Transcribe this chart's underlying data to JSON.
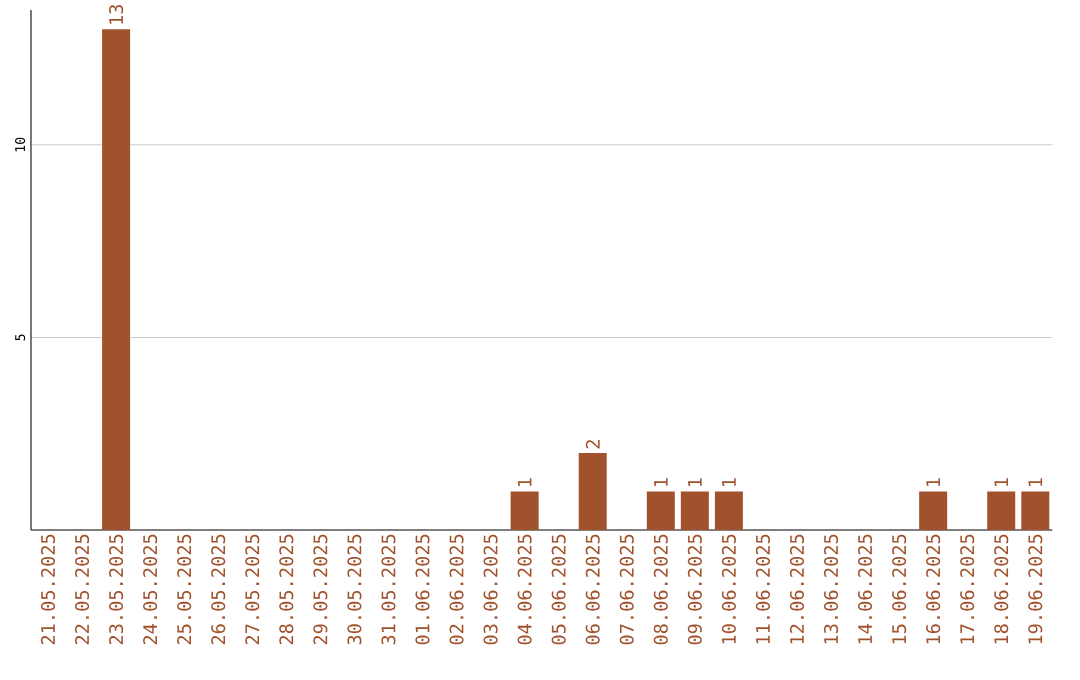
{
  "chart_data": {
    "type": "bar",
    "categories": [
      "21.05.2025",
      "22.05.2025",
      "23.05.2025",
      "24.05.2025",
      "25.05.2025",
      "26.05.2025",
      "27.05.2025",
      "28.05.2025",
      "29.05.2025",
      "30.05.2025",
      "31.05.2025",
      "01.06.2025",
      "02.06.2025",
      "03.06.2025",
      "04.06.2025",
      "05.06.2025",
      "06.06.2025",
      "07.06.2025",
      "08.06.2025",
      "09.06.2025",
      "10.06.2025",
      "11.06.2025",
      "12.06.2025",
      "13.06.2025",
      "14.06.2025",
      "15.06.2025",
      "16.06.2025",
      "17.06.2025",
      "18.06.2025",
      "19.06.2025"
    ],
    "values": [
      0,
      0,
      13,
      0,
      0,
      0,
      0,
      0,
      0,
      0,
      0,
      0,
      0,
      0,
      1,
      0,
      2,
      0,
      1,
      1,
      1,
      0,
      0,
      0,
      0,
      0,
      1,
      0,
      1,
      1
    ],
    "value_labels": [
      null,
      null,
      "13",
      null,
      null,
      null,
      null,
      null,
      null,
      null,
      null,
      null,
      null,
      null,
      "1",
      null,
      "2",
      null,
      "1",
      "1",
      "1",
      null,
      null,
      null,
      null,
      null,
      "1",
      null,
      "1",
      "1"
    ],
    "color": "#a0522d",
    "ylim": [
      0,
      13.5
    ],
    "yticks": [
      5,
      10
    ],
    "grid": "y"
  }
}
